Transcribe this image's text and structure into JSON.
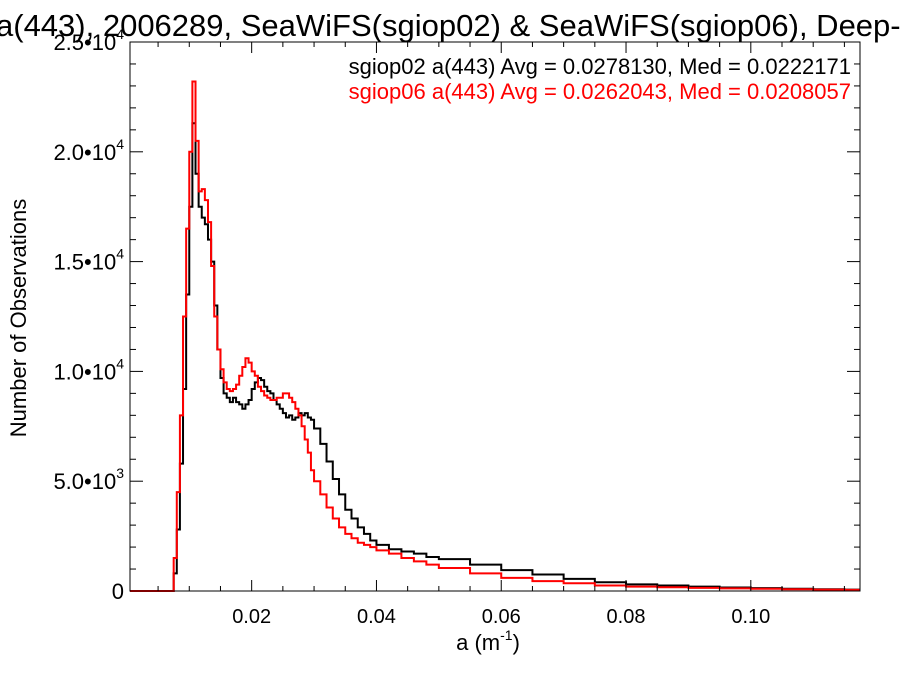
{
  "chart_data": {
    "type": "line",
    "title": "a(443), 2006289, SeaWiFS(sgiop02) & SeaWiFS(sgiop06), Deep-",
    "xlabel": "a (m",
    "xlabel_sup": "-1",
    "xlabel_end": ")",
    "ylabel": "Number of Observations",
    "xlim": [
      0.0005,
      0.1175
    ],
    "ylim": [
      0,
      25000
    ],
    "xticks": [
      0.02,
      0.04,
      0.06,
      0.08,
      0.1
    ],
    "xtick_labels": [
      "0.02",
      "0.04",
      "0.06",
      "0.08",
      "0.10"
    ],
    "yticks": [
      0,
      5000,
      10000,
      15000,
      20000,
      25000
    ],
    "ytick_labels": [
      {
        "mantissa": "0",
        "exp": ""
      },
      {
        "mantissa": "5.0•10",
        "exp": "3"
      },
      {
        "mantissa": "1.0•10",
        "exp": "4"
      },
      {
        "mantissa": "1.5•10",
        "exp": "4"
      },
      {
        "mantissa": "2.0•10",
        "exp": "4"
      },
      {
        "mantissa": "2.5•10",
        "exp": "4"
      }
    ],
    "legend": [
      {
        "text": "sgiop02 a(443) Avg = 0.0278130, Med = 0.0222171",
        "color": "#000000"
      },
      {
        "text": "sgiop06 a(443) Avg = 0.0262043, Med = 0.0208057",
        "color": "#ff0000"
      }
    ],
    "legend_placement": "top-right",
    "series": [
      {
        "name": "sgiop02",
        "color": "#000000",
        "x": [
          0.0005,
          0.007,
          0.0075,
          0.008,
          0.0085,
          0.009,
          0.0095,
          0.01,
          0.0105,
          0.011,
          0.0115,
          0.012,
          0.0125,
          0.013,
          0.0135,
          0.014,
          0.0145,
          0.015,
          0.0155,
          0.016,
          0.0165,
          0.017,
          0.0175,
          0.018,
          0.0185,
          0.019,
          0.0195,
          0.02,
          0.0205,
          0.021,
          0.0215,
          0.022,
          0.0225,
          0.023,
          0.0235,
          0.024,
          0.0245,
          0.025,
          0.0255,
          0.026,
          0.0265,
          0.027,
          0.0275,
          0.028,
          0.0285,
          0.029,
          0.0295,
          0.03,
          0.031,
          0.032,
          0.033,
          0.034,
          0.035,
          0.036,
          0.037,
          0.038,
          0.039,
          0.04,
          0.042,
          0.044,
          0.046,
          0.048,
          0.05,
          0.055,
          0.06,
          0.065,
          0.07,
          0.075,
          0.08,
          0.085,
          0.09,
          0.095,
          0.1,
          0.105,
          0.11,
          0.115
        ],
        "y": [
          0,
          0,
          800,
          2800,
          5800,
          9200,
          13500,
          17500,
          21300,
          19000,
          17500,
          17000,
          16700,
          16000,
          15000,
          13000,
          11000,
          9700,
          9000,
          8800,
          8600,
          8800,
          8600,
          8500,
          8300,
          8500,
          8700,
          9200,
          9500,
          9700,
          9600,
          9300,
          9100,
          9000,
          8700,
          8500,
          8300,
          8100,
          7900,
          8000,
          7800,
          7900,
          8100,
          8000,
          8100,
          7900,
          7800,
          7400,
          6700,
          5900,
          5100,
          4400,
          3700,
          3300,
          2900,
          2600,
          2300,
          2100,
          1900,
          1800,
          1700,
          1550,
          1450,
          1200,
          950,
          750,
          550,
          400,
          300,
          250,
          200,
          160,
          130,
          100,
          80,
          60
        ]
      },
      {
        "name": "sgiop06",
        "color": "#ff0000",
        "x": [
          0.0005,
          0.007,
          0.0075,
          0.008,
          0.0085,
          0.009,
          0.0095,
          0.01,
          0.0105,
          0.011,
          0.0115,
          0.012,
          0.0125,
          0.013,
          0.0135,
          0.014,
          0.0145,
          0.015,
          0.0155,
          0.016,
          0.0165,
          0.017,
          0.0175,
          0.018,
          0.0185,
          0.019,
          0.0195,
          0.02,
          0.0205,
          0.021,
          0.0215,
          0.022,
          0.0225,
          0.023,
          0.0235,
          0.024,
          0.0245,
          0.025,
          0.0255,
          0.026,
          0.0265,
          0.027,
          0.0275,
          0.028,
          0.0285,
          0.029,
          0.0295,
          0.03,
          0.031,
          0.032,
          0.033,
          0.034,
          0.035,
          0.036,
          0.037,
          0.038,
          0.039,
          0.04,
          0.042,
          0.044,
          0.046,
          0.048,
          0.05,
          0.055,
          0.06,
          0.065,
          0.07,
          0.075,
          0.08,
          0.085,
          0.09,
          0.095,
          0.1,
          0.105,
          0.11,
          0.115
        ],
        "y": [
          0,
          0,
          1500,
          4500,
          8000,
          12500,
          16500,
          20000,
          23200,
          20500,
          18200,
          18300,
          17800,
          16800,
          14800,
          12500,
          11000,
          10100,
          9500,
          9200,
          9100,
          9200,
          9400,
          9800,
          10200,
          10600,
          10400,
          10000,
          9800,
          9300,
          9100,
          8900,
          8800,
          8700,
          8700,
          8800,
          8800,
          9000,
          9000,
          8800,
          8600,
          8300,
          8000,
          7500,
          6900,
          6300,
          5500,
          5000,
          4400,
          3800,
          3300,
          2900,
          2600,
          2400,
          2200,
          2100,
          2000,
          1850,
          1700,
          1500,
          1350,
          1200,
          1050,
          800,
          600,
          450,
          350,
          250,
          200,
          170,
          140,
          120,
          100,
          80,
          60,
          50
        ]
      }
    ]
  }
}
